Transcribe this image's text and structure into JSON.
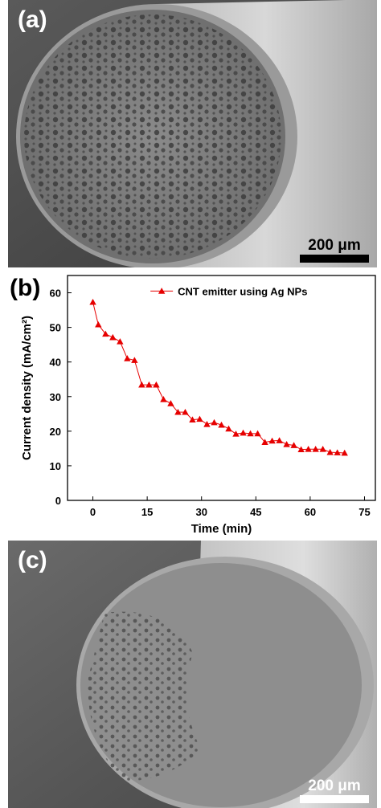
{
  "panels": {
    "a": {
      "letter": "(a)",
      "scale_text": "200 μm"
    },
    "b": {
      "letter": "(b)"
    },
    "c": {
      "letter": "(c)",
      "scale_text": "200 μm"
    }
  },
  "colors": {
    "series": "#e60000",
    "axis": "#000000"
  },
  "chart_data": {
    "type": "line",
    "xlabel": "Time (min)",
    "ylabel": "Current density (mA/cm²)",
    "xlim": [
      -7,
      78
    ],
    "ylim": [
      0,
      65
    ],
    "xticks": [
      0,
      15,
      30,
      45,
      60,
      75
    ],
    "yticks": [
      0,
      10,
      20,
      30,
      40,
      50,
      60
    ],
    "legend_position": "top-right",
    "grid": false,
    "series": [
      {
        "name": "CNT emitter using Ag NPs",
        "marker": "triangle",
        "x": [
          0,
          1.5,
          3.5,
          5.5,
          7.5,
          9.5,
          11.5,
          13.5,
          15.5,
          17.5,
          19.5,
          21.5,
          23.5,
          25.5,
          27.5,
          29.5,
          31.5,
          33.5,
          35.5,
          37.5,
          39.5,
          41.5,
          43.5,
          45.5,
          47.5,
          49.5,
          51.5,
          53.5,
          55.5,
          57.5,
          59.5,
          61.5,
          63.5,
          65.5,
          67.5,
          69.5
        ],
        "y": [
          57.3,
          50.8,
          48.1,
          47.1,
          45.9,
          41.0,
          40.5,
          33.4,
          33.4,
          33.4,
          29.2,
          28.0,
          25.5,
          25.5,
          23.3,
          23.5,
          22.0,
          22.5,
          21.8,
          20.7,
          19.2,
          19.5,
          19.3,
          19.3,
          16.8,
          17.2,
          17.3,
          16.2,
          15.9,
          14.7,
          14.8,
          14.8,
          14.8,
          13.9,
          13.8,
          13.7
        ]
      }
    ]
  }
}
